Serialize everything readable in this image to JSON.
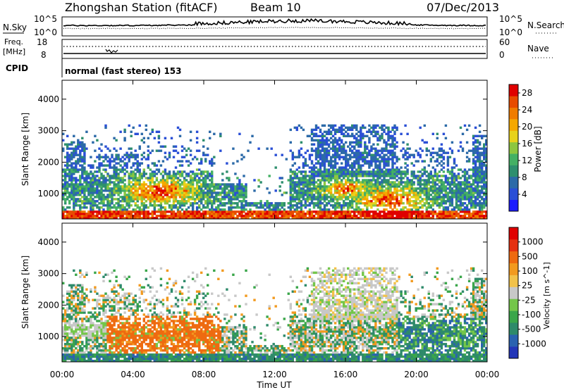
{
  "header": {
    "title": "Zhongshan Station (fitACF)",
    "beam": "Beam 10",
    "date": "07/Dec/2013"
  },
  "noise_panel": {
    "left_label": "N.Sky",
    "right_label": "N.Search",
    "ticks": [
      "10^5",
      "10^0"
    ],
    "legend_style": "dotted"
  },
  "freq_panel": {
    "left_label_1": "Freq.",
    "left_label_2": "[MHz]",
    "left_ticks": [
      "18",
      "8"
    ],
    "right_label": "Nave",
    "right_ticks": [
      "60",
      "0"
    ],
    "legend_style": "dotted"
  },
  "cpid": {
    "label": "CPID",
    "text": "normal (fast stereo) 153"
  },
  "chart_data": [
    {
      "type": "heatmap",
      "name": "power",
      "ylabel": "Slant Range [km]",
      "y_ticks": [
        "1000",
        "2000",
        "3000",
        "4000"
      ],
      "ylim": [
        200,
        4600
      ],
      "x_ticks": [
        "00:00",
        "04:00",
        "08:00",
        "12:00",
        "16:00",
        "20:00",
        "00:00"
      ],
      "xlim": [
        0,
        24
      ],
      "colorbar": {
        "label": "Power [dB]",
        "ticks": [
          "4",
          "8",
          "12",
          "16",
          "20",
          "24",
          "28"
        ],
        "range": [
          0,
          30
        ],
        "colors": [
          "#1c1cff",
          "#2a4fd6",
          "#2c6aa8",
          "#2e8f6e",
          "#44b064",
          "#8dc63f",
          "#e8d21b",
          "#f5a800",
          "#f07c00",
          "#e84b00",
          "#e00000"
        ]
      }
    },
    {
      "type": "heatmap",
      "name": "velocity",
      "ylabel": "Slant Range [km]",
      "y_ticks": [
        "1000",
        "2000",
        "3000",
        "4000"
      ],
      "ylim": [
        200,
        4600
      ],
      "x_ticks": [
        "00:00",
        "04:00",
        "08:00",
        "12:00",
        "16:00",
        "20:00",
        "00:00"
      ],
      "xlim": [
        0,
        24
      ],
      "xlabel": "Time UT",
      "colorbar": {
        "label": "Velocity [m s^-1]",
        "ticks": [
          "1000",
          "500",
          "100",
          "25",
          "-25",
          "-100",
          "-500",
          "-1000"
        ],
        "colors": [
          "#2336b8",
          "#2a62b0",
          "#2e8a6a",
          "#3aa64a",
          "#74c64a",
          "#c8c8c8",
          "#f2c24a",
          "#f29a1f",
          "#ee6a10",
          "#e53010",
          "#e00000"
        ]
      }
    }
  ]
}
